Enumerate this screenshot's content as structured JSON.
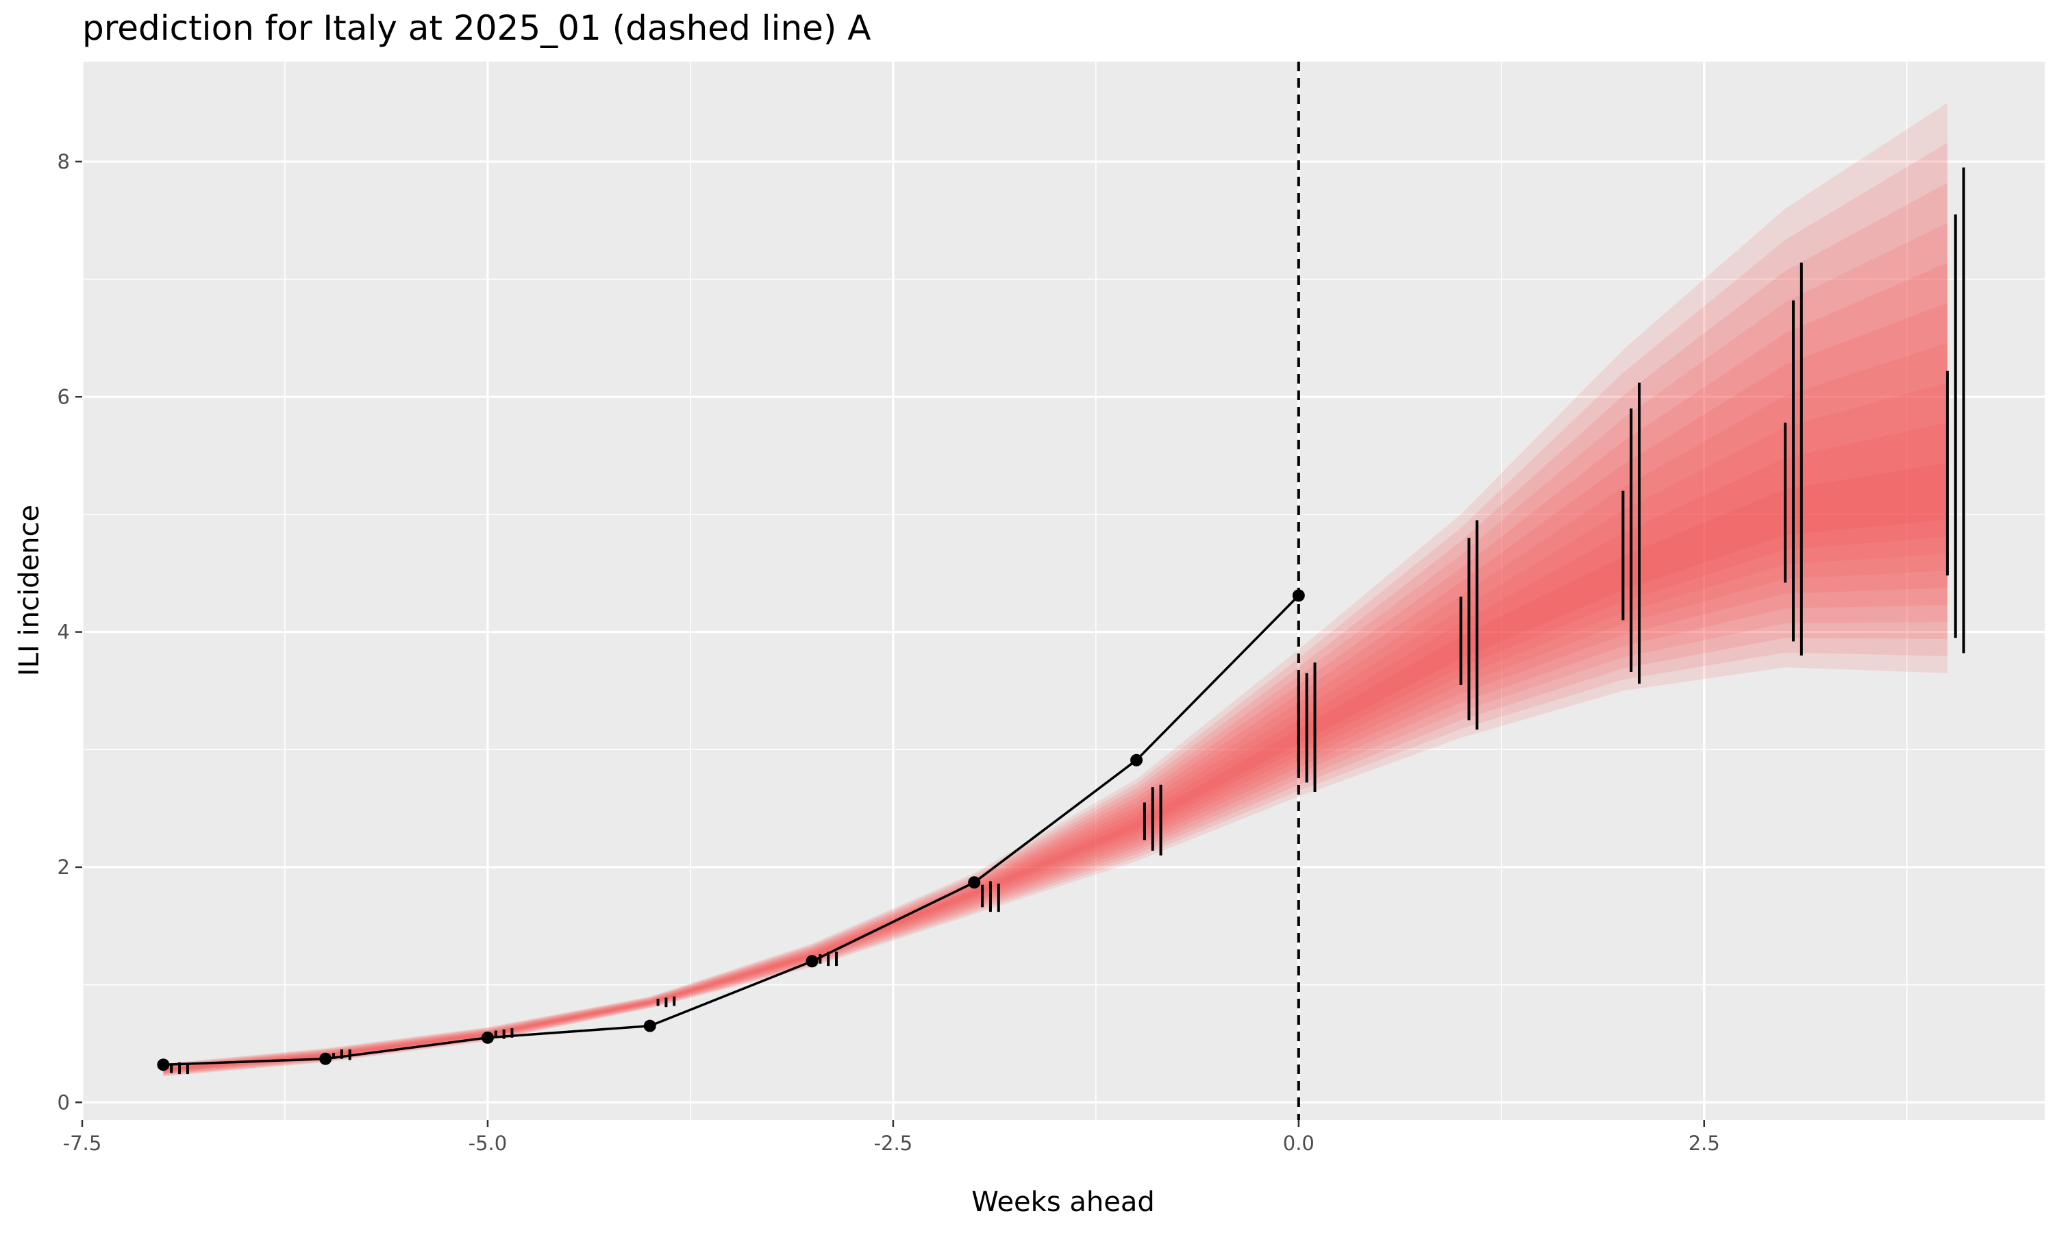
{
  "chart_data": {
    "type": "line",
    "title": "prediction for Italy at 2025_01 (dashed line) A",
    "xlabel": "Weeks ahead",
    "ylabel": "ILI incidence",
    "xlim": [
      -7.5,
      4.6
    ],
    "ylim": [
      -0.15,
      8.85
    ],
    "x_ticks": [
      -7.5,
      -5.0,
      -2.5,
      0.0,
      2.5
    ],
    "x_tick_labels": [
      "-7.5",
      "-5.0",
      "-2.5",
      "0.0",
      "2.5"
    ],
    "y_ticks": [
      0,
      2,
      4,
      6,
      8
    ],
    "y_tick_labels": [
      "0",
      "2",
      "4",
      "6",
      "8"
    ],
    "grid": true,
    "vline": {
      "x": 0,
      "style": "dashed"
    },
    "observed": {
      "x": [
        -7,
        -6,
        -5,
        -4,
        -3,
        -2,
        -1,
        0
      ],
      "y": [
        0.32,
        0.37,
        0.55,
        0.65,
        1.2,
        1.87,
        2.91,
        4.31
      ]
    },
    "forecast_band": {
      "x": [
        -7,
        -6,
        -5,
        -4,
        -3,
        -2,
        -1,
        0,
        1,
        2,
        3,
        4
      ],
      "median": [
        0.28,
        0.4,
        0.58,
        0.85,
        1.25,
        1.78,
        2.35,
        3.1,
        3.85,
        4.45,
        4.95,
        5.1
      ],
      "lower_outer": [
        0.22,
        0.34,
        0.52,
        0.8,
        1.15,
        1.6,
        2.05,
        2.6,
        3.1,
        3.5,
        3.7,
        3.65
      ],
      "upper_outer": [
        0.33,
        0.46,
        0.64,
        0.9,
        1.35,
        1.95,
        2.75,
        3.85,
        5.0,
        6.4,
        7.6,
        8.5
      ],
      "levels": 10,
      "color": "#f84848"
    },
    "intervals": [
      {
        "x": -6.95,
        "low": 0.25,
        "high": 0.33
      },
      {
        "x": -6.9,
        "low": 0.24,
        "high": 0.34
      },
      {
        "x": -6.85,
        "low": 0.24,
        "high": 0.33
      },
      {
        "x": -5.95,
        "low": 0.37,
        "high": 0.42
      },
      {
        "x": -5.9,
        "low": 0.37,
        "high": 0.45
      },
      {
        "x": -5.85,
        "low": 0.36,
        "high": 0.45
      },
      {
        "x": -4.95,
        "low": 0.56,
        "high": 0.61
      },
      {
        "x": -4.9,
        "low": 0.54,
        "high": 0.62
      },
      {
        "x": -4.85,
        "low": 0.55,
        "high": 0.63
      },
      {
        "x": -3.95,
        "low": 0.82,
        "high": 0.88
      },
      {
        "x": -3.9,
        "low": 0.81,
        "high": 0.89
      },
      {
        "x": -3.85,
        "low": 0.82,
        "high": 0.9
      },
      {
        "x": -2.95,
        "low": 1.18,
        "high": 1.26
      },
      {
        "x": -2.9,
        "low": 1.16,
        "high": 1.28
      },
      {
        "x": -2.85,
        "low": 1.16,
        "high": 1.28
      },
      {
        "x": -1.95,
        "low": 1.66,
        "high": 1.85
      },
      {
        "x": -1.9,
        "low": 1.62,
        "high": 1.88
      },
      {
        "x": -1.85,
        "low": 1.62,
        "high": 1.86
      },
      {
        "x": -0.95,
        "low": 2.23,
        "high": 2.55
      },
      {
        "x": -0.9,
        "low": 2.14,
        "high": 2.68
      },
      {
        "x": -0.85,
        "low": 2.1,
        "high": 2.7
      },
      {
        "x": 0.0,
        "low": 2.8,
        "high": 3.6
      },
      {
        "x": 0.05,
        "low": 2.72,
        "high": 3.65
      },
      {
        "x": 0.1,
        "low": 2.64,
        "high": 3.74
      },
      {
        "x": 1.0,
        "low": 3.55,
        "high": 4.3
      },
      {
        "x": 1.05,
        "low": 3.25,
        "high": 4.8
      },
      {
        "x": 1.1,
        "low": 3.17,
        "high": 4.95
      },
      {
        "x": 2.0,
        "low": 4.1,
        "high": 5.2
      },
      {
        "x": 2.05,
        "low": 3.66,
        "high": 5.9
      },
      {
        "x": 2.1,
        "low": 3.56,
        "high": 6.12
      },
      {
        "x": 3.0,
        "low": 4.42,
        "high": 5.78
      },
      {
        "x": 3.05,
        "low": 3.92,
        "high": 6.82
      },
      {
        "x": 3.1,
        "low": 3.8,
        "high": 7.14
      },
      {
        "x": 4.0,
        "low": 4.48,
        "high": 6.22
      },
      {
        "x": 4.05,
        "low": 3.95,
        "high": 7.55
      },
      {
        "x": 4.1,
        "low": 3.82,
        "high": 7.95
      }
    ]
  }
}
